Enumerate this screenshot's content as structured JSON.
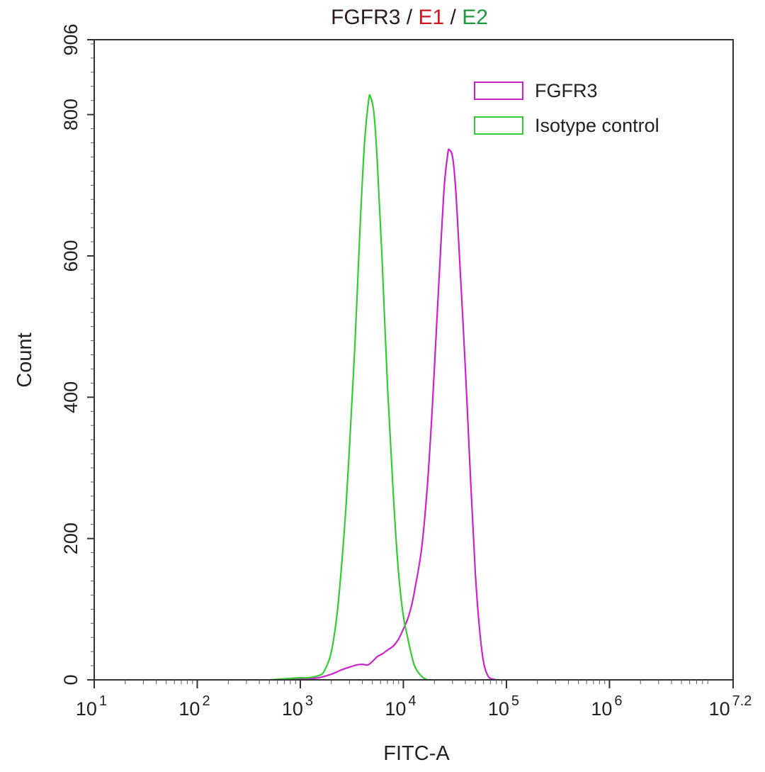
{
  "chart_data": {
    "type": "line",
    "title_parts": [
      {
        "text": "FGFR3",
        "color": "#2a1a22"
      },
      {
        "text": " / ",
        "color": "#2a1a22"
      },
      {
        "text": "E1",
        "color": "#d4141e"
      },
      {
        "text": " / ",
        "color": "#2a1a22"
      },
      {
        "text": "E2",
        "color": "#1e9a3c"
      }
    ],
    "xlabel": "FITC-A",
    "ylabel": "Count",
    "x_scale": "log",
    "xlim": [
      10,
      15848932
    ],
    "ylim": [
      0,
      906
    ],
    "x_ticks": [
      {
        "value": 10,
        "base": "10",
        "exp": "1"
      },
      {
        "value": 100,
        "base": "10",
        "exp": "2"
      },
      {
        "value": 1000,
        "base": "10",
        "exp": "3"
      },
      {
        "value": 10000,
        "base": "10",
        "exp": "4"
      },
      {
        "value": 100000,
        "base": "10",
        "exp": "5"
      },
      {
        "value": 1000000,
        "base": "10",
        "exp": "6"
      },
      {
        "value": 15848932,
        "base": "10",
        "exp": "7.2"
      }
    ],
    "y_ticks": [
      0,
      200,
      400,
      600,
      800,
      906
    ],
    "legend_position": "top-right",
    "grid": false,
    "series": [
      {
        "name": "FGFR3",
        "color": "#cc22cc",
        "points": [
          [
            700,
            0
          ],
          [
            1000,
            1
          ],
          [
            1500,
            3
          ],
          [
            2000,
            8
          ],
          [
            2500,
            14
          ],
          [
            3000,
            18
          ],
          [
            3500,
            21
          ],
          [
            4000,
            22
          ],
          [
            4500,
            21
          ],
          [
            5000,
            26
          ],
          [
            5600,
            33
          ],
          [
            6300,
            37
          ],
          [
            7000,
            42
          ],
          [
            8000,
            48
          ],
          [
            9000,
            58
          ],
          [
            10000,
            72
          ],
          [
            11000,
            86
          ],
          [
            12000,
            105
          ],
          [
            13000,
            130
          ],
          [
            15000,
            185
          ],
          [
            17000,
            270
          ],
          [
            19000,
            380
          ],
          [
            21000,
            500
          ],
          [
            23000,
            610
          ],
          [
            25000,
            700
          ],
          [
            27000,
            745
          ],
          [
            28000,
            750
          ],
          [
            30000,
            740
          ],
          [
            32000,
            700
          ],
          [
            35000,
            600
          ],
          [
            40000,
            440
          ],
          [
            45000,
            280
          ],
          [
            50000,
            150
          ],
          [
            55000,
            70
          ],
          [
            60000,
            25
          ],
          [
            65000,
            8
          ],
          [
            70000,
            2
          ],
          [
            80000,
            0
          ]
        ]
      },
      {
        "name": "Isotype control",
        "color": "#33cc33",
        "points": [
          [
            500,
            0
          ],
          [
            800,
            2
          ],
          [
            1000,
            3
          ],
          [
            1200,
            3
          ],
          [
            1500,
            6
          ],
          [
            1700,
            12
          ],
          [
            2000,
            40
          ],
          [
            2300,
            100
          ],
          [
            2700,
            220
          ],
          [
            3000,
            330
          ],
          [
            3400,
            480
          ],
          [
            3800,
            640
          ],
          [
            4200,
            760
          ],
          [
            4600,
            820
          ],
          [
            4800,
            825
          ],
          [
            5200,
            800
          ],
          [
            5600,
            730
          ],
          [
            6200,
            600
          ],
          [
            7000,
            420
          ],
          [
            8000,
            260
          ],
          [
            9000,
            150
          ],
          [
            10000,
            90
          ],
          [
            11000,
            60
          ],
          [
            12000,
            35
          ],
          [
            13000,
            18
          ],
          [
            15000,
            5
          ],
          [
            17000,
            0
          ]
        ]
      }
    ]
  }
}
